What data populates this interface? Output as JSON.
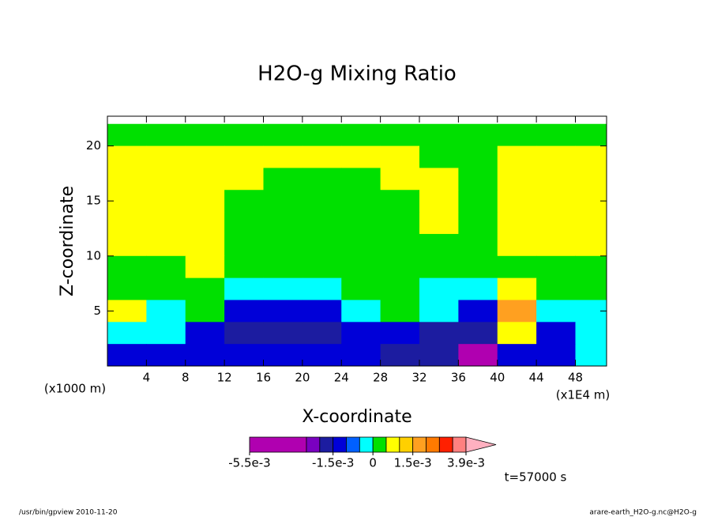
{
  "chart_data": {
    "type": "contour",
    "title": "H2O-g Mixing Ratio",
    "xlabel": "X-coordinate",
    "ylabel": "Z-coordinate",
    "x_unit_left": "(x1000 m)",
    "x_unit_right": "(x1E4 m)",
    "time_label": "t=57000 s",
    "footer_left": "/usr/bin/gpview  2010-11-20",
    "footer_right": "arare-earth_H2O-g.nc@H2O-g",
    "xlim": [
      0,
      51.2
    ],
    "ylim": [
      0,
      22.7
    ],
    "xticks": [
      4,
      8,
      12,
      16,
      20,
      24,
      28,
      32,
      36,
      40,
      44,
      48
    ],
    "yticks": [
      5,
      10,
      15,
      20
    ],
    "x": [
      2,
      6,
      10,
      14,
      18,
      22,
      26,
      30,
      34,
      38,
      42,
      46,
      50
    ],
    "z": [
      21,
      19,
      17,
      15,
      13,
      11,
      9,
      7,
      5,
      3,
      1
    ],
    "values": [
      [
        0.0002,
        0.0002,
        0.0002,
        0.0002,
        0.0002,
        0.0002,
        0.0002,
        0.0002,
        0.0002,
        0.0002,
        0.0002,
        0.0002,
        0.0002
      ],
      [
        0.0007,
        0.0007,
        0.0007,
        0.0007,
        0.0007,
        0.0007,
        0.0007,
        0.0007,
        0.0002,
        0.0002,
        0.0007,
        0.0007,
        0.0007
      ],
      [
        0.0007,
        0.0007,
        0.0007,
        0.0007,
        0.0002,
        0.0002,
        0.0002,
        0.0007,
        0.0007,
        0.0002,
        0.0007,
        0.0007,
        0.0007
      ],
      [
        0.0007,
        0.0007,
        0.0007,
        0.0002,
        0.0002,
        0.0002,
        0.0002,
        0.0002,
        0.0007,
        0.0002,
        0.0007,
        0.0007,
        0.0007
      ],
      [
        0.0007,
        0.0007,
        0.0007,
        0.0002,
        0.0002,
        0.0002,
        0.0002,
        0.0002,
        0.0007,
        0.0002,
        0.0007,
        0.0007,
        0.0007
      ],
      [
        0.0007,
        0.0007,
        0.0007,
        0.0002,
        0.0002,
        0.0002,
        0.0002,
        0.0002,
        0.0002,
        0.0002,
        0.0007,
        0.0007,
        0.0007
      ],
      [
        0.0002,
        0.0002,
        0.0007,
        0.0002,
        0.0002,
        0.0002,
        0.0002,
        0.0002,
        0.0002,
        0.0002,
        0.0002,
        0.0002,
        0.0002
      ],
      [
        0.0002,
        0.0002,
        0.0002,
        -0.0003,
        -0.0003,
        -0.0003,
        0.0002,
        0.0002,
        -0.0003,
        -0.0003,
        0.0007,
        0.0002,
        0.0002
      ],
      [
        0.0007,
        -0.0003,
        0.0002,
        -0.0012,
        -0.0012,
        -0.0012,
        -0.0003,
        0.0002,
        -0.0003,
        -0.0012,
        0.0017,
        -0.0003,
        -0.0003
      ],
      [
        -0.0003,
        -0.0003,
        -0.0012,
        -0.0017,
        -0.0017,
        -0.0017,
        -0.0012,
        -0.0012,
        -0.0017,
        -0.0017,
        0.0007,
        -0.0012,
        -0.0003
      ],
      [
        -0.0012,
        -0.0012,
        -0.0012,
        -0.0012,
        -0.0012,
        -0.0012,
        -0.0012,
        -0.0017,
        -0.0017,
        -0.003,
        -0.0012,
        -0.0012,
        -0.0003
      ]
    ],
    "levels": [
      -0.0055,
      -0.0025,
      -0.002,
      -0.0015,
      -0.001,
      -0.0005,
      0,
      0.0005,
      0.001,
      0.0015,
      0.002,
      0.0025,
      0.003,
      0.0039
    ],
    "colors": [
      "#b000b0",
      "#7a00c0",
      "#1c1ca0",
      "#0000d8",
      "#0060ff",
      "#00ffff",
      "#00e000",
      "#ffff00",
      "#ffd000",
      "#ffa020",
      "#ff7a00",
      "#ff2000",
      "#ff8080"
    ],
    "over_color": "#ffb0c0",
    "colorbar_ticks": [
      {
        "value": -0.0055,
        "label": "-5.5e-3"
      },
      {
        "value": -0.0015,
        "label": "-1.5e-3"
      },
      0,
      {
        "value": 0.0015,
        "label": "1.5e-3"
      },
      {
        "value": 0.0039,
        "label": "3.9e-3"
      }
    ]
  }
}
